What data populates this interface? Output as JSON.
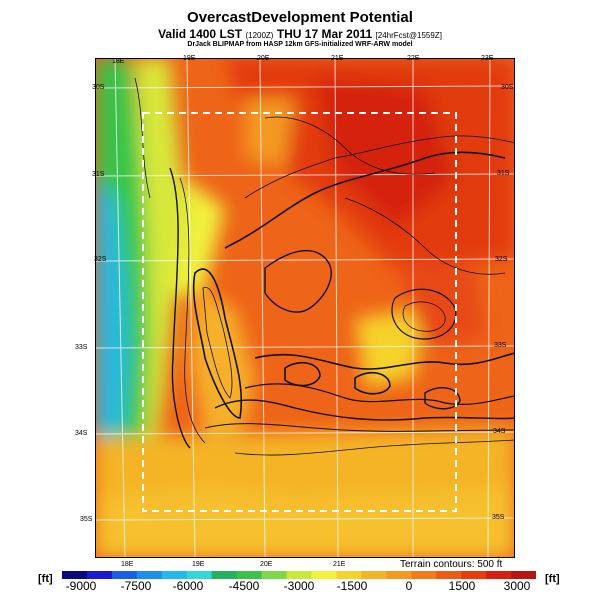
{
  "header": {
    "title": "OvercastDevelopment Potential",
    "valid": "Valid 1400 LST",
    "valid_code": "(1200Z)",
    "valid_day": "THU 17 Mar 2011",
    "forecast": "[24hrFcst@1559Z]",
    "credit": "DrJack BLIPMAP from HASP 12km GFS-initialized WRF-ARW model"
  },
  "map": {
    "top_lon_labels": [
      "18E",
      "19E",
      "20E",
      "21E",
      "22E",
      "23E"
    ],
    "bottom_lon_labels": [
      "18E",
      "19E",
      "20E",
      "21E"
    ],
    "left_lat_labels": [
      "30S",
      "31S",
      "32S",
      "33S",
      "34S",
      "35S"
    ],
    "right_lat_labels": [
      "30S",
      "31S",
      "32S",
      "33S",
      "34S",
      "35S"
    ],
    "terrain_note": "Terrain contours: 500 ft"
  },
  "colorbar": {
    "unit_left": "[ft]",
    "unit_right": "[ft]",
    "labels": [
      "-9000",
      "-7500",
      "-6000",
      "-4500",
      "-3000",
      "-1500",
      "0",
      "1500",
      "3000"
    ],
    "colors": [
      "#0a0a7a",
      "#1a1ad0",
      "#1c5fe6",
      "#1e8ee8",
      "#25b8ee",
      "#34d6d6",
      "#28b060",
      "#3cc04a",
      "#7ed84a",
      "#c8e83a",
      "#f2f23c",
      "#f6d22c",
      "#f4b428",
      "#f49a24",
      "#f07c1c",
      "#ec5c14",
      "#e63c10",
      "#d81e0e",
      "#b81414"
    ]
  }
}
